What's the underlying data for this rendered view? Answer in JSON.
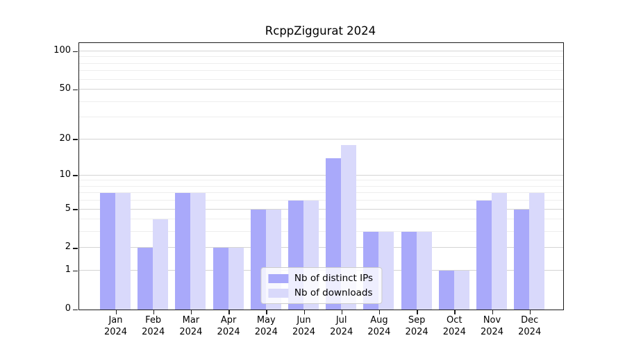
{
  "title": "RcppZiggurat 2024",
  "chart_data": {
    "type": "bar",
    "title": "RcppZiggurat 2024",
    "categories": [
      "Jan 2024",
      "Feb 2024",
      "Mar 2024",
      "Apr 2024",
      "May 2024",
      "Jun 2024",
      "Jul 2024",
      "Aug 2024",
      "Sep 2024",
      "Oct 2024",
      "Nov 2024",
      "Dec 2024"
    ],
    "series": [
      {
        "name": "Nb of distinct IPs",
        "color": "#a9a9fa",
        "values": [
          7,
          2,
          7,
          2,
          5,
          6,
          14,
          3,
          3,
          1,
          6,
          5
        ]
      },
      {
        "name": "Nb of downloads",
        "color": "#d9d9fb",
        "values": [
          7,
          4,
          7,
          2,
          5,
          6,
          18,
          3,
          3,
          1,
          7,
          7
        ]
      }
    ],
    "xlabel": "",
    "ylabel": "",
    "yscale": "log1p",
    "y_ticks": [
      0,
      1,
      2,
      5,
      10,
      20,
      50,
      100
    ],
    "y_minor_ticks": [
      3,
      4,
      6,
      7,
      8,
      9,
      30,
      40,
      60,
      70,
      80,
      90
    ],
    "ylim": [
      0,
      110
    ],
    "grid": true,
    "legend_position": "lower center (inside plot)"
  }
}
